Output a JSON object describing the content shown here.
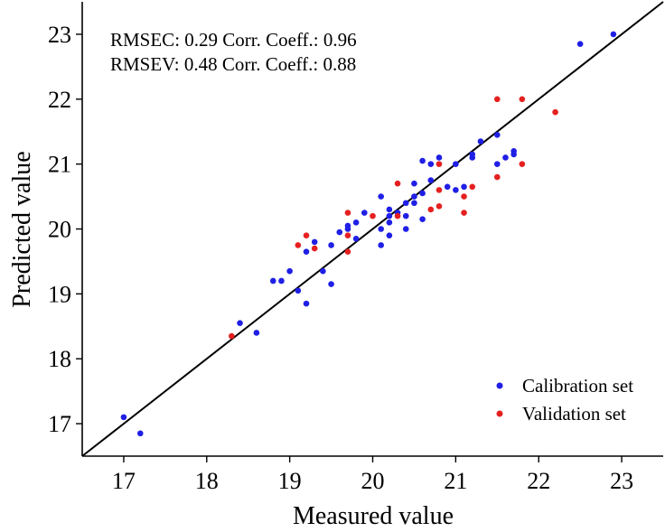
{
  "chart_data": {
    "type": "scatter",
    "title": "",
    "xlabel": "Measured value",
    "ylabel": "Predicted value",
    "xlim": [
      16.5,
      23.5
    ],
    "ylim": [
      16.5,
      23.5
    ],
    "xticks": [
      17,
      18,
      19,
      20,
      21,
      22,
      23
    ],
    "yticks": [
      17,
      18,
      19,
      20,
      21,
      22,
      23
    ],
    "xtick_labels": [
      "17",
      "18",
      "19",
      "20",
      "21",
      "22",
      "23"
    ],
    "ytick_labels": [
      "17",
      "18",
      "19",
      "20",
      "21",
      "22",
      "23"
    ],
    "grid": false,
    "legend_position": "bottom-right",
    "reference_line": {
      "type": "identity",
      "x": [
        16.5,
        23.5
      ],
      "y": [
        16.5,
        23.5
      ]
    },
    "annotations": [
      "RMSEC: 0.29 Corr. Coeff.: 0.96",
      "RMSEV: 0.48 Corr. Coeff.: 0.88"
    ],
    "series": [
      {
        "name": "Calibration set",
        "color": "#1f1fe6",
        "points": [
          [
            17.0,
            17.1
          ],
          [
            17.2,
            16.85
          ],
          [
            18.4,
            18.55
          ],
          [
            18.6,
            18.4
          ],
          [
            18.8,
            19.2
          ],
          [
            18.9,
            19.2
          ],
          [
            19.0,
            19.35
          ],
          [
            19.1,
            19.05
          ],
          [
            19.2,
            18.85
          ],
          [
            19.2,
            19.65
          ],
          [
            19.3,
            19.8
          ],
          [
            19.4,
            19.35
          ],
          [
            19.5,
            19.15
          ],
          [
            19.5,
            19.75
          ],
          [
            19.6,
            19.95
          ],
          [
            19.7,
            20.0
          ],
          [
            19.7,
            20.05
          ],
          [
            19.8,
            19.85
          ],
          [
            19.8,
            20.1
          ],
          [
            19.9,
            20.25
          ],
          [
            20.1,
            19.75
          ],
          [
            20.1,
            20.0
          ],
          [
            20.1,
            20.5
          ],
          [
            20.2,
            19.9
          ],
          [
            20.2,
            20.1
          ],
          [
            20.2,
            20.2
          ],
          [
            20.2,
            20.3
          ],
          [
            20.3,
            20.25
          ],
          [
            20.4,
            20.0
          ],
          [
            20.4,
            20.2
          ],
          [
            20.4,
            20.4
          ],
          [
            20.5,
            20.4
          ],
          [
            20.5,
            20.5
          ],
          [
            20.5,
            20.7
          ],
          [
            20.6,
            20.15
          ],
          [
            20.6,
            20.55
          ],
          [
            20.6,
            21.05
          ],
          [
            20.7,
            20.75
          ],
          [
            20.7,
            21.0
          ],
          [
            20.8,
            21.1
          ],
          [
            20.9,
            20.65
          ],
          [
            21.0,
            20.6
          ],
          [
            21.0,
            21.0
          ],
          [
            21.1,
            20.65
          ],
          [
            21.2,
            21.1
          ],
          [
            21.2,
            21.15
          ],
          [
            21.3,
            21.35
          ],
          [
            21.5,
            21.0
          ],
          [
            21.5,
            21.45
          ],
          [
            21.6,
            21.1
          ],
          [
            21.7,
            21.2
          ],
          [
            21.7,
            21.15
          ],
          [
            22.5,
            22.85
          ],
          [
            22.9,
            23.0
          ]
        ]
      },
      {
        "name": "Validation set",
        "color": "#e62020",
        "points": [
          [
            18.3,
            18.35
          ],
          [
            19.1,
            19.75
          ],
          [
            19.2,
            19.9
          ],
          [
            19.3,
            19.7
          ],
          [
            19.7,
            19.65
          ],
          [
            19.7,
            19.9
          ],
          [
            19.7,
            20.25
          ],
          [
            20.0,
            20.2
          ],
          [
            20.3,
            20.2
          ],
          [
            20.3,
            20.7
          ],
          [
            20.7,
            20.3
          ],
          [
            20.8,
            20.35
          ],
          [
            20.8,
            20.6
          ],
          [
            20.8,
            21.0
          ],
          [
            21.1,
            20.25
          ],
          [
            21.1,
            20.5
          ],
          [
            21.2,
            20.65
          ],
          [
            21.5,
            20.8
          ],
          [
            21.5,
            22.0
          ],
          [
            21.8,
            21.0
          ],
          [
            21.8,
            22.0
          ],
          [
            22.2,
            21.8
          ]
        ]
      }
    ]
  }
}
